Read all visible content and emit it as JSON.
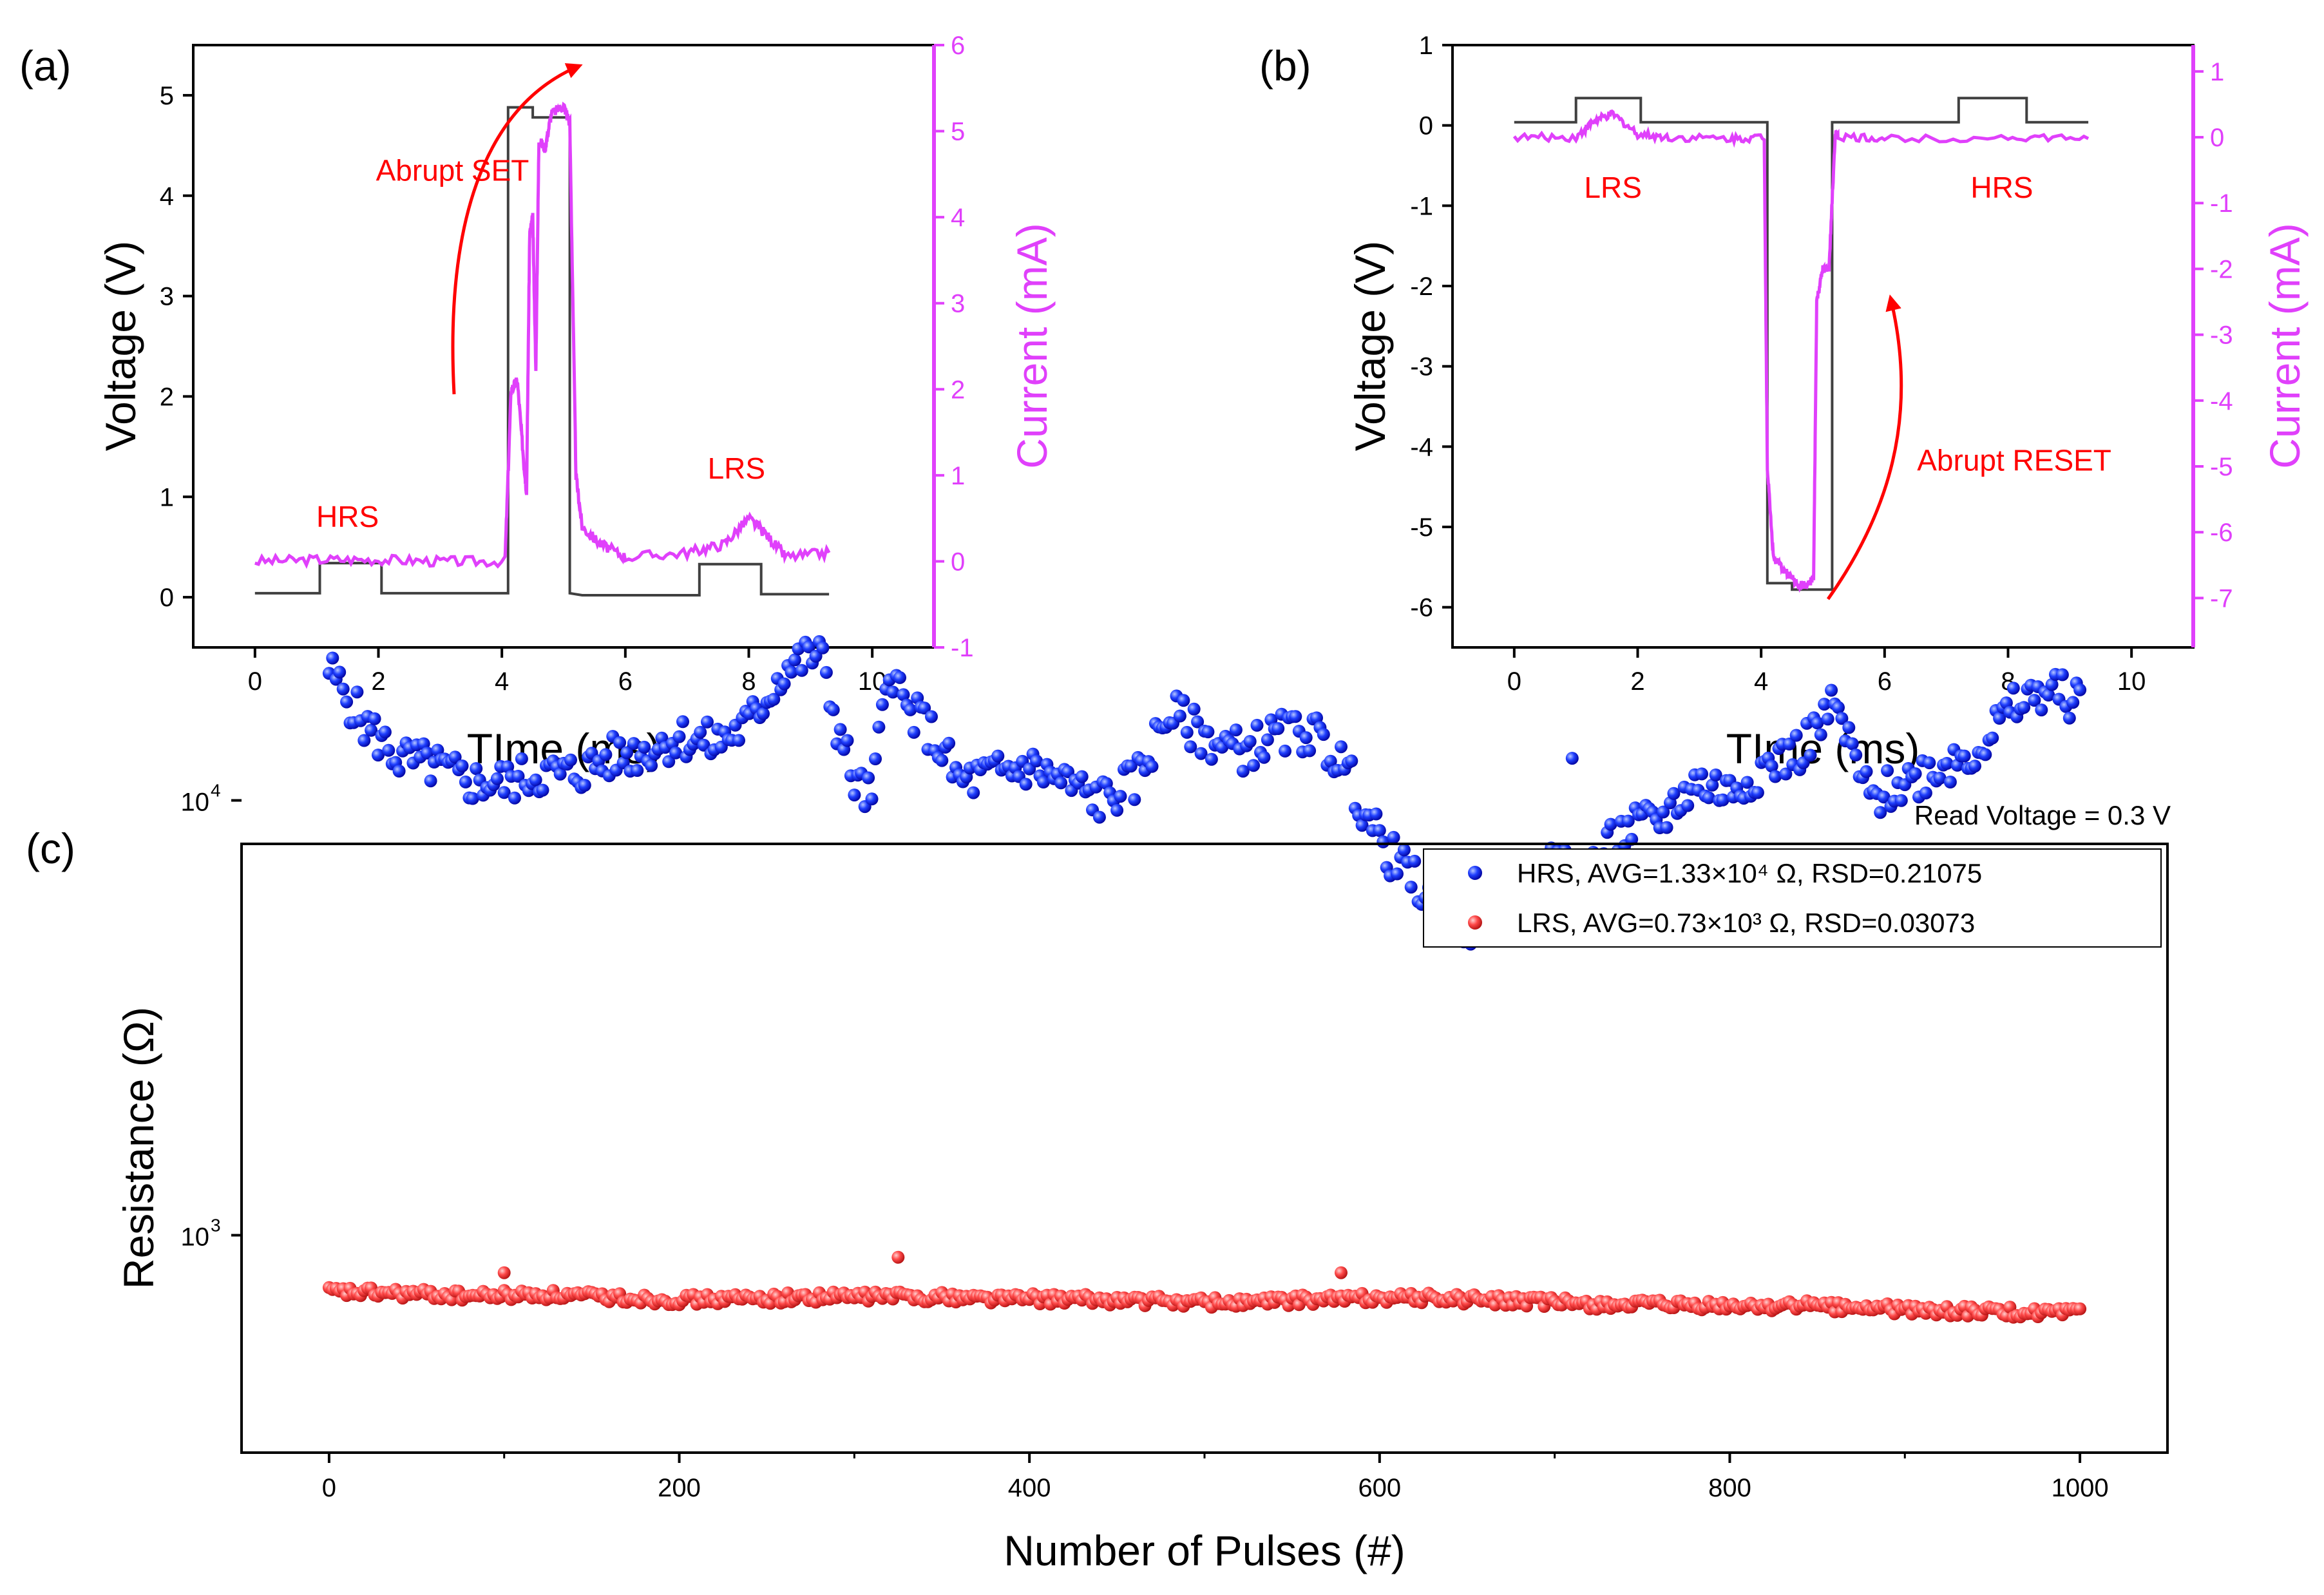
{
  "chart_data": [
    {
      "type": "line",
      "panel_label": "(a)",
      "xlabel": "TIme (ms)",
      "ylabel": "Voltage (V)",
      "y2label": "Current (mA)",
      "xlim": [
        -1,
        11
      ],
      "ylim": [
        -0.5,
        5.5
      ],
      "y2lim": [
        -1,
        6
      ],
      "xticks": [
        "0",
        "2",
        "4",
        "6",
        "8",
        "10"
      ],
      "yticks": [
        "0",
        "1",
        "2",
        "3",
        "4",
        "5"
      ],
      "y2ticks": [
        "-1",
        "0",
        "1",
        "2",
        "3",
        "4",
        "5",
        "6"
      ],
      "colors": {
        "voltage": "#404040",
        "current": "#e040fb",
        "annotation": "#ff0000"
      },
      "series": [
        {
          "name": "Voltage",
          "axis": "left",
          "color": "#404040",
          "x": [
            0,
            1.05,
            1.05,
            2.05,
            2.05,
            4.1,
            4.1,
            4.5,
            4.5,
            5.1,
            5.1,
            5.3,
            7.2,
            7.2,
            8.2,
            8.2,
            9.3
          ],
          "y": [
            0.04,
            0.04,
            0.34,
            0.34,
            0.04,
            0.04,
            4.88,
            4.88,
            4.78,
            4.78,
            0.04,
            0.02,
            0.02,
            0.33,
            0.33,
            0.03,
            0.03
          ]
        },
        {
          "name": "Current",
          "axis": "right",
          "color": "#e040fb",
          "x": [
            0,
            1.0,
            2.0,
            3.0,
            4.05,
            4.15,
            4.25,
            4.35,
            4.4,
            4.45,
            4.5,
            4.55,
            4.6,
            4.7,
            4.8,
            5.0,
            5.1,
            5.2,
            5.3,
            5.6,
            6.0,
            7.0,
            7.6,
            8.0,
            8.3,
            8.6,
            9.3
          ],
          "y": [
            0.0,
            0.02,
            0.02,
            0.0,
            0.0,
            2.0,
            2.1,
            1.2,
            0.8,
            3.8,
            4.0,
            2.2,
            4.9,
            4.8,
            5.2,
            5.3,
            5.1,
            1.0,
            0.4,
            0.2,
            0.05,
            0.1,
            0.2,
            0.5,
            0.3,
            0.05,
            0.1
          ]
        }
      ],
      "annotations": [
        {
          "text": "Abrupt SET",
          "x": 3.2,
          "y": 4.15
        },
        {
          "text": "HRS",
          "x": 1.5,
          "y": 0.7
        },
        {
          "text": "LRS",
          "x": 7.8,
          "y": 1.18
        }
      ]
    },
    {
      "type": "line",
      "panel_label": "(b)",
      "xlabel": "TIme (ms)",
      "ylabel": "Voltage (V)",
      "y2label": "Current (mA)",
      "xlim": [
        -1,
        11
      ],
      "ylim": [
        -6.5,
        1
      ],
      "y2lim": [
        -7.75,
        1.4
      ],
      "xticks": [
        "0",
        "2",
        "4",
        "6",
        "8",
        "10"
      ],
      "yticks": [
        "1",
        "0",
        "-1",
        "-2",
        "-3",
        "-4",
        "-5",
        "-6"
      ],
      "y2ticks": [
        "1",
        "0",
        "-1",
        "-2",
        "-3",
        "-4",
        "-5",
        "-6",
        "-7"
      ],
      "colors": {
        "voltage": "#404040",
        "current": "#e040fb",
        "annotation": "#ff0000"
      },
      "series": [
        {
          "name": "Voltage",
          "axis": "left",
          "color": "#404040",
          "x": [
            0,
            1.0,
            1.0,
            2.05,
            2.05,
            4.1,
            4.1,
            4.5,
            4.5,
            5.15,
            5.15,
            7.2,
            7.2,
            8.3,
            8.3,
            9.3
          ],
          "y": [
            0.04,
            0.04,
            0.34,
            0.34,
            0.04,
            0.04,
            -5.7,
            -5.7,
            -5.78,
            -5.78,
            0.04,
            0.04,
            0.34,
            0.34,
            0.04,
            0.04
          ]
        },
        {
          "name": "Current",
          "axis": "right",
          "color": "#e040fb",
          "x": [
            0,
            1.0,
            1.3,
            1.6,
            2.0,
            2.5,
            3.5,
            4.05,
            4.1,
            4.2,
            4.4,
            4.6,
            4.75,
            4.85,
            4.9,
            5.0,
            5.1,
            5.2,
            5.25,
            6.0,
            8.0,
            9.3
          ],
          "y": [
            0.0,
            0.0,
            0.25,
            0.35,
            0.05,
            0.0,
            -0.02,
            0.0,
            -5.0,
            -6.4,
            -6.6,
            -6.8,
            -6.8,
            -6.7,
            -2.5,
            -2.0,
            -2.0,
            0.05,
            0.0,
            -0.02,
            0.0,
            -0.02
          ]
        }
      ],
      "annotations": [
        {
          "text": "Abrupt RESET",
          "x": 8.1,
          "y": -4.3
        },
        {
          "text": "LRS",
          "x": 1.6,
          "y": -0.9
        },
        {
          "text": "HRS",
          "x": 7.9,
          "y": -0.9
        }
      ]
    },
    {
      "type": "scatter",
      "panel_label": "(c)",
      "title": "Read Voltage = 0.3 V",
      "xlabel": "Number of Pulses (#)",
      "ylabel": "Resistance (Ω)",
      "xlim": [
        -50,
        1050
      ],
      "ylim_log10": [
        2.5,
        3.9
      ],
      "y_scale": "log",
      "xticks": [
        "0",
        "200",
        "400",
        "600",
        "800",
        "1000"
      ],
      "yticks": [
        {
          "base": "10",
          "exp": "3"
        },
        {
          "base": "10",
          "exp": "4"
        }
      ],
      "legend_position": "top-right",
      "colors": {
        "hrs": "#0000ff",
        "lrs": "#ff4444"
      },
      "series": [
        {
          "name": "HRS, AVG=1.33×10⁴ Ω, RSD=0.21075",
          "color": "#0000ff",
          "x": [
            0,
            20,
            40,
            60,
            80,
            100,
            120,
            140,
            160,
            180,
            200,
            220,
            240,
            260,
            270,
            280,
            290,
            300,
            310,
            320,
            330,
            340,
            350,
            360,
            380,
            400,
            420,
            440,
            460,
            480,
            500,
            520,
            540,
            560,
            580,
            600,
            620,
            640,
            660,
            680,
            700,
            720,
            740,
            760,
            780,
            800,
            820,
            840,
            860,
            880,
            900,
            920,
            940,
            960,
            980,
            1000
          ],
          "y": [
            20000,
            15000,
            12500,
            12000,
            11000,
            11000,
            11500,
            11500,
            12500,
            13000,
            14000,
            13500,
            15000,
            20000,
            21000,
            22000,
            15000,
            11000,
            10000,
            21000,
            16000,
            15000,
            13000,
            11000,
            11500,
            12000,
            11000,
            10000,
            11000,
            16000,
            14000,
            13000,
            14000,
            14500,
            12000,
            8000,
            6500,
            5200,
            5200,
            6500,
            7000,
            7000,
            8500,
            9000,
            11000,
            10500,
            12000,
            13000,
            16500,
            10000,
            11000,
            12000,
            13000,
            16000,
            18000,
            17000
          ]
        },
        {
          "name": "LRS, AVG=0.73×10³ Ω, RSD=0.03073",
          "color": "#ff4444",
          "x": [
            0,
            40,
            80,
            120,
            160,
            200,
            240,
            280,
            320,
            360,
            400,
            440,
            480,
            520,
            560,
            600,
            640,
            680,
            720,
            760,
            800,
            840,
            880,
            920,
            960,
            1000
          ],
          "y": [
            740,
            735,
            725,
            730,
            720,
            710,
            715,
            720,
            725,
            720,
            715,
            710,
            705,
            700,
            710,
            720,
            715,
            705,
            695,
            690,
            685,
            690,
            680,
            670,
            665,
            660
          ]
        }
      ],
      "outliers": [
        {
          "series": "HRS",
          "x": 710,
          "y": 12500
        },
        {
          "series": "LRS",
          "x": 100,
          "y": 820
        },
        {
          "series": "LRS",
          "x": 325,
          "y": 890
        },
        {
          "series": "LRS",
          "x": 578,
          "y": 820
        }
      ]
    }
  ]
}
